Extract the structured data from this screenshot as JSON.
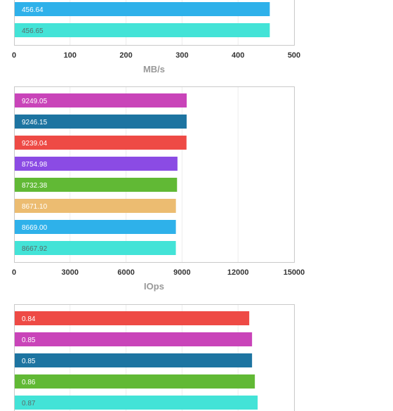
{
  "chart_data": [
    {
      "type": "bar",
      "orientation": "horizontal",
      "xlabel": "MB/s",
      "xlim": [
        0,
        500
      ],
      "ticks": [
        "0",
        "100",
        "200",
        "300",
        "400",
        "500"
      ],
      "grid": true,
      "categories": [
        "",
        ""
      ],
      "values": [
        456.64,
        456.65
      ],
      "labels": [
        "456.64",
        "456.65"
      ],
      "colors": [
        "#2eb1ea",
        "#43e3d7"
      ]
    },
    {
      "type": "bar",
      "orientation": "horizontal",
      "xlabel": "IOps",
      "xlim": [
        0,
        15000
      ],
      "ticks": [
        "0",
        "3000",
        "6000",
        "9000",
        "12000",
        "15000"
      ],
      "grid": true,
      "categories": [
        "",
        "",
        "",
        "",
        "",
        "",
        "",
        ""
      ],
      "values": [
        9249.05,
        9246.15,
        9239.04,
        8754.98,
        8732.38,
        8671.1,
        8669.0,
        8667.92
      ],
      "labels": [
        "9249.05",
        "9246.15",
        "9239.04",
        "8754.98",
        "8732.38",
        "8671.10",
        "8669.00",
        "8667.92"
      ],
      "colors": [
        "#c944b9",
        "#1d74a1",
        "#ee4a45",
        "#8b4be4",
        "#61b935",
        "#ecbc71",
        "#2eb1ea",
        "#43e3d7"
      ]
    },
    {
      "type": "bar",
      "orientation": "horizontal",
      "xlim": [
        0,
        1
      ],
      "grid": true,
      "categories": [
        "",
        "",
        "",
        "",
        ""
      ],
      "values": [
        0.84,
        0.85,
        0.85,
        0.86,
        0.87
      ],
      "labels": [
        "0.84",
        "0.85",
        "0.85",
        "0.86",
        "0.87"
      ],
      "colors": [
        "#ee4a45",
        "#c944b9",
        "#1d74a1",
        "#61b935",
        "#43e3d7"
      ]
    }
  ]
}
